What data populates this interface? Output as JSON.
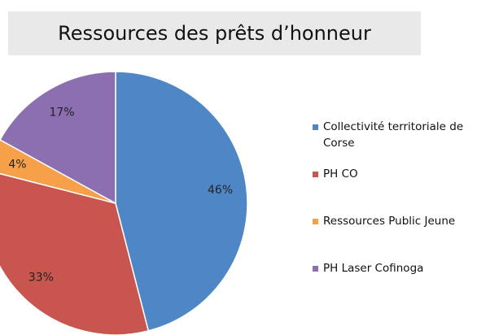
{
  "chart_data": {
    "type": "pie",
    "title": "Ressources des prêts d’honneur",
    "categories": [
      "Collectivité territoriale de Corse",
      "PH CO",
      "Ressources Public Jeune",
      "PH Laser Cofinoga"
    ],
    "values": [
      46,
      33,
      4,
      17
    ],
    "value_labels": [
      "46%",
      "33%",
      "4%",
      "17%"
    ],
    "colors": [
      "#4f87c6",
      "#c9554f",
      "#f6a04a",
      "#8c6fb0"
    ],
    "legend": "right"
  }
}
